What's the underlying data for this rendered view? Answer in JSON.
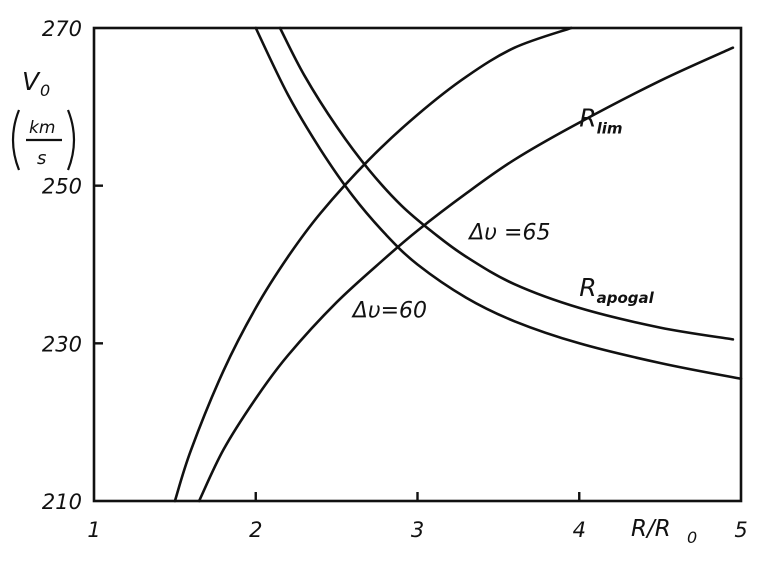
{
  "chart_data": {
    "type": "line",
    "xlabel": "R/R",
    "xlabel_sub": "0",
    "ylabel_main": "V",
    "ylabel_sub": "0",
    "ylabel_unit_num": "km",
    "ylabel_unit_den": "s",
    "xlim": [
      1,
      5
    ],
    "ylim": [
      210,
      270
    ],
    "x_ticks": [
      {
        "value": 1,
        "label": "1"
      },
      {
        "value": 2,
        "label": "2"
      },
      {
        "value": 3,
        "label": "3"
      },
      {
        "value": 4,
        "label": "4"
      },
      {
        "value": 5,
        "label": "5"
      }
    ],
    "y_ticks": [
      {
        "value": 210,
        "label": "210"
      },
      {
        "value": 230,
        "label": "230"
      },
      {
        "value": 250,
        "label": "250"
      },
      {
        "value": 270,
        "label": "270"
      }
    ],
    "grid": false,
    "series": [
      {
        "id": "apogal_dv60",
        "x": [
          2.0,
          2.2,
          2.4,
          2.6,
          2.8,
          3.0,
          3.3,
          3.6,
          4.0,
          4.5,
          5.0
        ],
        "y": [
          270,
          261.5,
          254.6,
          248.7,
          243.9,
          240.0,
          235.8,
          232.8,
          230.0,
          227.5,
          225.5
        ]
      },
      {
        "id": "apogal_dv65",
        "x": [
          2.15,
          2.3,
          2.5,
          2.7,
          2.9,
          3.1,
          3.3,
          3.6,
          4.0,
          4.5,
          4.95
        ],
        "y": [
          270,
          264.0,
          257.5,
          252.0,
          247.5,
          244.0,
          241.0,
          237.5,
          234.5,
          232.0,
          230.5
        ]
      },
      {
        "id": "lim_dv60",
        "x": [
          1.65,
          1.8,
          2.0,
          2.2,
          2.5,
          2.8,
          3.0,
          3.3,
          3.6,
          4.0,
          4.5,
          4.95
        ],
        "y": [
          210,
          216.5,
          223.0,
          228.5,
          235.2,
          240.8,
          244.3,
          249.0,
          253.3,
          258.0,
          263.3,
          267.5
        ]
      },
      {
        "id": "lim_dv65",
        "x": [
          1.5,
          1.6,
          1.8,
          2.0,
          2.2,
          2.4,
          2.7,
          3.0,
          3.3,
          3.6,
          3.95
        ],
        "y": [
          210,
          216.5,
          226.5,
          234.5,
          241.0,
          246.5,
          253.3,
          259.0,
          263.8,
          267.5,
          270
        ]
      }
    ],
    "annotations": [
      {
        "id": "r-lim",
        "main": "R",
        "sub": "lim",
        "x": 4.0,
        "y": 257.5
      },
      {
        "id": "r-apogal",
        "main": "R",
        "sub": "apogal",
        "x": 4.0,
        "y": 236.0
      },
      {
        "id": "dv-65",
        "text": "Δυ =65",
        "x": 3.32,
        "y": 243.2
      },
      {
        "id": "dv-60",
        "text": "Δυ=60",
        "x": 2.6,
        "y": 233.3
      }
    ]
  }
}
